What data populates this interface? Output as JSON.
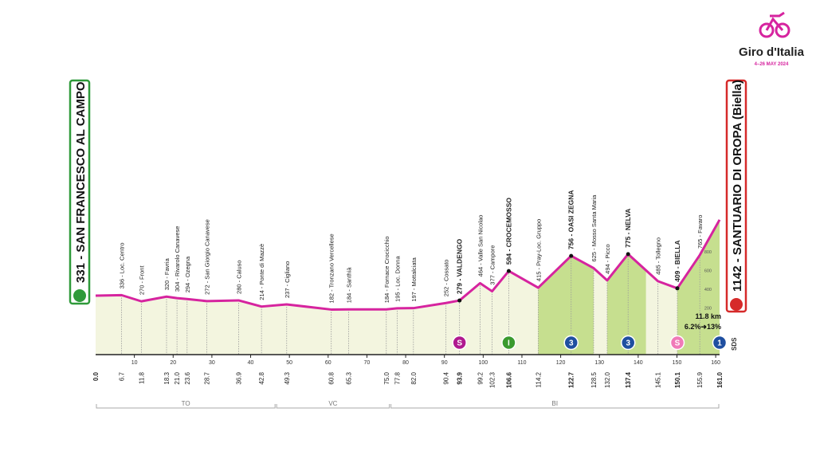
{
  "logo": {
    "title": "Giro d'Italia",
    "dates": "4–26 MAY 2024"
  },
  "chart_data": {
    "type": "area",
    "start": "331 - SAN FRANCESCO AL CAMPO",
    "finish": "1142 - SANTUARIO DI OROPA (Biella)",
    "color": "#d6249f",
    "fill": "#f3f5df",
    "climb_color": "#c6df8f",
    "x": [
      {
        "value": 0,
        "label": "0.0"
      },
      6.7,
      11.8,
      18.3,
      {
        "value": 21,
        "label": "21.0"
      },
      23.6,
      28.7,
      36.9,
      42.8,
      49.3,
      60.8,
      65.3,
      {
        "value": 75,
        "label": "75.0"
      },
      77.8,
      {
        "value": 82,
        "label": "82.0"
      },
      90.4,
      93.9,
      99.2,
      102.3,
      106.6,
      114.2,
      122.7,
      128.5,
      {
        "value": 132,
        "label": "132.0"
      },
      137.4,
      145.1,
      150.1,
      155.9,
      {
        "value": 161,
        "label": "161.0"
      }
    ],
    "values": [
      331,
      336,
      270,
      320,
      304,
      294,
      272,
      280,
      214,
      237,
      182,
      184,
      184,
      195,
      197,
      252,
      279,
      464,
      377,
      594,
      415,
      756,
      625,
      494,
      775,
      485,
      409,
      765,
      1142
    ],
    "waypoints": [
      null,
      {
        "label": "336 - Loc. Centro"
      },
      {
        "label": "270 - Front"
      },
      {
        "label": "320 - Favria"
      },
      {
        "label": "304 - Rivarolo Canavese"
      },
      {
        "label": "294 - Ozegna"
      },
      {
        "label": "272 - San Giorgio Canavese"
      },
      {
        "label": "280 - Caluso"
      },
      {
        "label": "214 - Ponte di Mazzè"
      },
      {
        "label": "237 - Cigliano"
      },
      {
        "label": "182 - Tronzano Vercellese"
      },
      {
        "label": "184 - Santhià"
      },
      {
        "label": "184 - Fornace Crocicchio"
      },
      {
        "label": "195 - Loc. Donna"
      },
      {
        "label": "197 - Mottalciata"
      },
      {
        "label": "252 - Cossato"
      },
      {
        "label": "279 - VALDENGO",
        "bold": true
      },
      {
        "label": "464 - Valle San Nicolao"
      },
      {
        "label": "377 - Campore"
      },
      {
        "label": "594 - CROCEMOSSO",
        "bold": true
      },
      {
        "label": "415 - Pray-Loc. Gruppo"
      },
      {
        "label": "756 - OASI ZEGNA",
        "bold": true
      },
      {
        "label": "625 - Mosso Santa Maria"
      },
      {
        "label": "494 - Picco"
      },
      {
        "label": "775 - NELVA",
        "bold": true
      },
      {
        "label": "485 - Tollegno"
      },
      {
        "label": "409 - BIELLA",
        "bold": true
      },
      {
        "label": "765 - Favaro"
      },
      null
    ],
    "climbs": [
      [
        114.2,
        128.5
      ],
      [
        132,
        142
      ],
      [
        150.1,
        161
      ]
    ],
    "markers": [
      {
        "km": 93.9,
        "text": "S",
        "color": "#b0198f"
      },
      {
        "km": 106.6,
        "text": "I",
        "color": "#3a9a2e"
      },
      {
        "km": 122.7,
        "text": "3",
        "color": "#1f4fa0"
      },
      {
        "km": 137.4,
        "text": "3",
        "color": "#1f4fa0"
      },
      {
        "km": 150.1,
        "text": "S",
        "color": "#f07ab8"
      },
      {
        "km": 161,
        "text": "1",
        "color": "#1f4fa0"
      }
    ],
    "regions": [
      {
        "label": "TO",
        "from": 0,
        "to": 46.5
      },
      {
        "label": "VC",
        "from": 46.5,
        "to": 76
      },
      {
        "label": "BI",
        "from": 76,
        "to": 161
      }
    ],
    "xlim": [
      0,
      161
    ],
    "xticks": [
      10,
      20,
      30,
      40,
      50,
      60,
      70,
      80,
      90,
      100,
      110,
      120,
      130,
      140,
      150,
      160
    ],
    "ylim": [
      -300,
      1200
    ],
    "yticks": [
      200,
      400,
      600,
      800
    ],
    "annotation": {
      "distance": "11.8 km",
      "gradient": "6.2%➜13%"
    },
    "side_note": "SDS"
  }
}
